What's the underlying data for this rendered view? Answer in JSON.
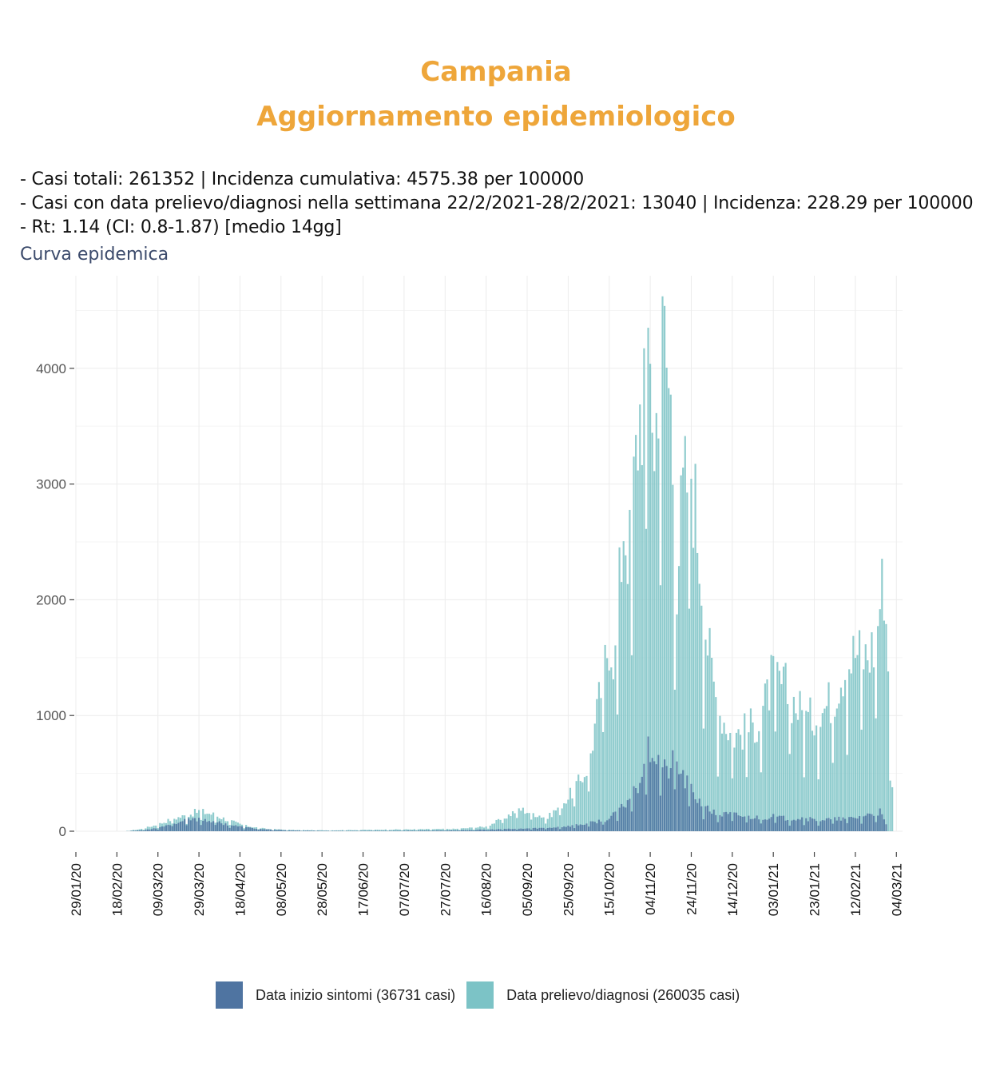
{
  "header": {
    "region": "Campania",
    "heading": "Aggiornamento epidemiologico"
  },
  "summary": {
    "line1": "- Casi totali: 261352 | Incidenza cumulativa: 4575.38 per 100000",
    "line2": "- Casi con data prelievo/diagnosi nella settimana 22/2/2021-28/2/2021: 13040 | Incidenza: 228.29 per 100000",
    "line3": "- Rt: 1.14 (CI: 0.8-1.87) [medio 14gg]"
  },
  "section_title": "Curva epidemica",
  "colors": {
    "title": "#eea63a",
    "sintomi": "#4f74a1",
    "diagnosi": "#7cc3c6"
  },
  "chart_data": {
    "type": "bar",
    "title": "",
    "xlabel": "",
    "ylabel": "",
    "ylim": [
      0,
      4800
    ],
    "xlim": [
      "2020-01-29",
      "2021-03-07"
    ],
    "yticks": [
      0,
      1000,
      2000,
      3000,
      4000
    ],
    "xticks": [
      "29/01/20",
      "18/02/20",
      "09/03/20",
      "29/03/20",
      "18/04/20",
      "08/05/20",
      "28/05/20",
      "17/06/20",
      "07/07/20",
      "27/07/20",
      "16/08/20",
      "05/09/20",
      "25/09/20",
      "15/10/20",
      "04/11/20",
      "24/11/20",
      "14/12/20",
      "03/01/21",
      "23/01/21",
      "12/02/21",
      "04/03/21"
    ],
    "grid": true,
    "legend_position": "bottom",
    "series": [
      {
        "name": "Data inizio sintomi (36731 casi)",
        "x": [
          "2020-02-22",
          "2020-03-01",
          "2020-03-09",
          "2020-03-16",
          "2020-03-23",
          "2020-03-29",
          "2020-04-05",
          "2020-04-12",
          "2020-04-20",
          "2020-05-01",
          "2020-05-15",
          "2020-06-01",
          "2020-07-01",
          "2020-08-01",
          "2020-08-16",
          "2020-09-01",
          "2020-09-15",
          "2020-09-25",
          "2020-10-05",
          "2020-10-15",
          "2020-10-22",
          "2020-10-29",
          "2020-11-01",
          "2020-11-04",
          "2020-11-08",
          "2020-11-12",
          "2020-11-16",
          "2020-11-20",
          "2020-11-24",
          "2020-12-01",
          "2020-12-07",
          "2020-12-14",
          "2020-12-21",
          "2020-12-28",
          "2021-01-03",
          "2021-01-10",
          "2021-01-17",
          "2021-01-23",
          "2021-01-30",
          "2021-02-06",
          "2021-02-12",
          "2021-02-19",
          "2021-02-24",
          "2021-02-27"
        ],
        "values": [
          0,
          8,
          30,
          70,
          95,
          110,
          90,
          60,
          35,
          15,
          6,
          3,
          4,
          8,
          14,
          22,
          30,
          45,
          70,
          110,
          220,
          420,
          620,
          760,
          640,
          520,
          640,
          480,
          360,
          200,
          150,
          150,
          130,
          120,
          130,
          110,
          120,
          100,
          105,
          110,
          120,
          150,
          170,
          60
        ]
      },
      {
        "name": "Data prelievo/diagnosi (260035 casi)",
        "x": [
          "2020-02-22",
          "2020-03-01",
          "2020-03-09",
          "2020-03-16",
          "2020-03-23",
          "2020-03-29",
          "2020-04-05",
          "2020-04-12",
          "2020-04-20",
          "2020-05-01",
          "2020-05-15",
          "2020-06-01",
          "2020-07-01",
          "2020-08-01",
          "2020-08-16",
          "2020-08-25",
          "2020-09-01",
          "2020-09-08",
          "2020-09-15",
          "2020-09-25",
          "2020-10-01",
          "2020-10-05",
          "2020-10-10",
          "2020-10-15",
          "2020-10-18",
          "2020-10-22",
          "2020-10-25",
          "2020-10-29",
          "2020-11-01",
          "2020-11-04",
          "2020-11-06",
          "2020-11-08",
          "2020-11-11",
          "2020-11-14",
          "2020-11-17",
          "2020-11-20",
          "2020-11-24",
          "2020-11-28",
          "2020-12-01",
          "2020-12-04",
          "2020-12-07",
          "2020-12-14",
          "2020-12-21",
          "2020-12-28",
          "2021-01-03",
          "2021-01-07",
          "2021-01-10",
          "2021-01-15",
          "2021-01-20",
          "2021-01-26",
          "2021-02-01",
          "2021-02-06",
          "2021-02-12",
          "2021-02-17",
          "2021-02-21",
          "2021-02-24",
          "2021-02-26",
          "2021-02-28",
          "2021-03-02"
        ],
        "values": [
          0,
          20,
          60,
          110,
          140,
          180,
          150,
          100,
          50,
          20,
          10,
          8,
          15,
          20,
          40,
          120,
          200,
          160,
          120,
          300,
          450,
          600,
          1150,
          1750,
          1550,
          2800,
          2500,
          3600,
          4050,
          4550,
          3200,
          4200,
          4350,
          3800,
          2300,
          3000,
          3280,
          2500,
          1850,
          1400,
          1100,
          850,
          900,
          1000,
          1400,
          1300,
          1250,
          1100,
          1000,
          1050,
          1200,
          1450,
          1600,
          1550,
          1650,
          2050,
          2270,
          1500,
          380
        ]
      }
    ]
  }
}
